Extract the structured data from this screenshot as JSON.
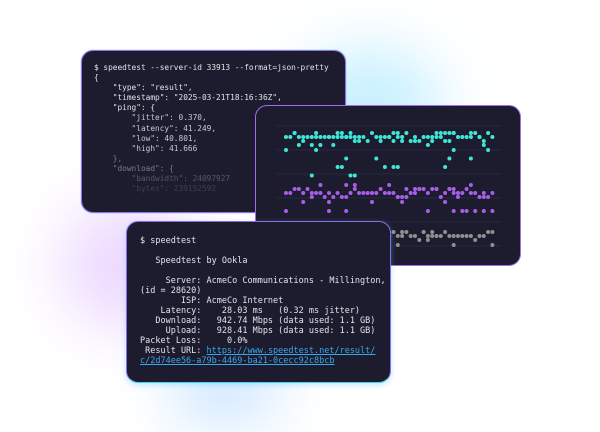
{
  "colors": {
    "cyan": "#3ee6d8",
    "purple": "#a85ee8",
    "gray": "#8f8f8f",
    "background": "#1c1c2e",
    "link": "#3aa7e8"
  },
  "json_terminal": {
    "command": "$ speedtest --server-id 33913 --format=json-pretty",
    "lines": [
      "{",
      "    \"type\": \"result\",",
      "    \"timestamp\": \"2025-03-21T18:16:36Z\",",
      "    \"ping\": {",
      "        \"jitter\": 0.370,",
      "        \"latency\": 41.249,",
      "        \"low\": 40.801,",
      "        \"high\": 41.666",
      "    },",
      "    \"download\": {",
      "        \"bandwidth\": 24097927",
      "        \"bytes\": 239152592"
    ]
  },
  "result_terminal": {
    "command": "$ speedtest",
    "title": "   Speedtest by Ookla",
    "server": "     Server: AcmeCo Communications - Millington, TN",
    "server_id": "(id = 28620)",
    "isp": "        ISP: AcmeCo Internet",
    "latency": "    Latency:    28.03 ms   (0.32 ms jitter)",
    "download": "   Download:   942.74 Mbps (data used: 1.1 GB)",
    "upload": "     Upload:   928.41 Mbps (data used: 1.1 GB)",
    "packet_loss": "Packet Loss:     0.0%",
    "result_label": " Result URL: ",
    "result_url_1": "https://www.speedtest.net/result/",
    "result_url_2": "c/2d74ee56-a79b-4469-ba21-0cecc92c8bcb"
  }
}
